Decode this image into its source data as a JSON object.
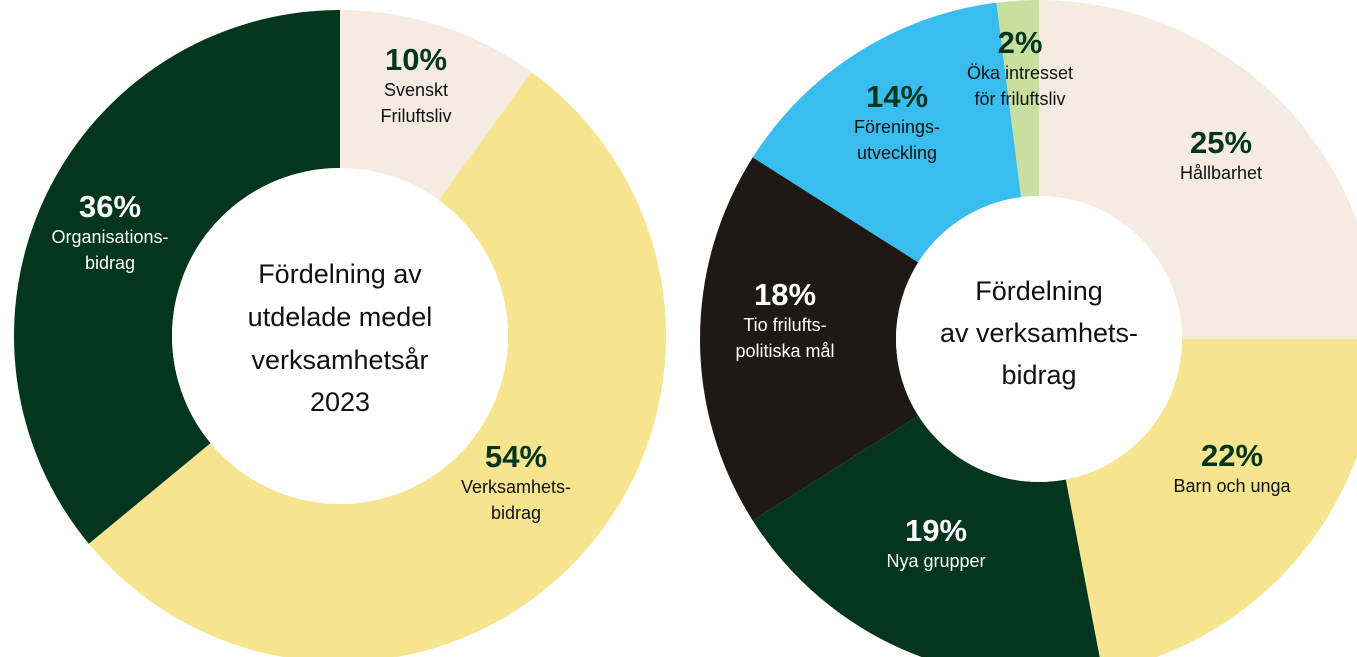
{
  "chart_data": [
    {
      "type": "pie",
      "title": "Fördelning av utdelade medel verksamhetsår 2023",
      "title_lines": [
        "Fördelning av",
        "utdelade medel",
        "verksamhetsår",
        "2023"
      ],
      "slices": [
        {
          "value": 10,
          "pct": "10%",
          "label_lines": [
            "Svenskt",
            "Friluftsliv"
          ],
          "color": "#f5ebe1",
          "pct_color": "#03351f",
          "label_color": "#111111"
        },
        {
          "value": 54,
          "pct": "54%",
          "label_lines": [
            "Verksamhets-",
            "bidrag"
          ],
          "color": "#f7e48f",
          "pct_color": "#03351f",
          "label_color": "#111111"
        },
        {
          "value": 36,
          "pct": "36%",
          "label_lines": [
            "Organisations-",
            "bidrag"
          ],
          "color": "#03351f",
          "pct_color": "#ffffff",
          "label_color": "#ffffff"
        }
      ]
    },
    {
      "type": "pie",
      "title": "Fördelning av verksamhets-bidrag",
      "title_lines": [
        "Fördelning",
        "av verksamhets-",
        "bidrag"
      ],
      "slices": [
        {
          "value": 25,
          "pct": "25%",
          "label_lines": [
            "Hållbarhet"
          ],
          "color": "#f5ebe1",
          "pct_color": "#03351f",
          "label_color": "#111111"
        },
        {
          "value": 22,
          "pct": "22%",
          "label_lines": [
            "Barn och unga"
          ],
          "color": "#f7e48f",
          "pct_color": "#03351f",
          "label_color": "#111111"
        },
        {
          "value": 19,
          "pct": "19%",
          "label_lines": [
            "Nya grupper"
          ],
          "color": "#03351f",
          "pct_color": "#ffffff",
          "label_color": "#ffffff"
        },
        {
          "value": 18,
          "pct": "18%",
          "label_lines": [
            "Tio frilufts-",
            "politiska mål"
          ],
          "color": "#1e1915",
          "pct_color": "#ffffff",
          "label_color": "#ffffff"
        },
        {
          "value": 14,
          "pct": "14%",
          "label_lines": [
            "Förenings-",
            "utveckling"
          ],
          "color": "#38bdee",
          "pct_color": "#03351f",
          "label_color": "#111111"
        },
        {
          "value": 2,
          "pct": "2%",
          "label_lines": [
            "Öka intresset",
            "för friluftsliv"
          ],
          "color": "#c8df9f",
          "pct_color": "#03351f",
          "label_color": "#111111"
        }
      ]
    }
  ]
}
